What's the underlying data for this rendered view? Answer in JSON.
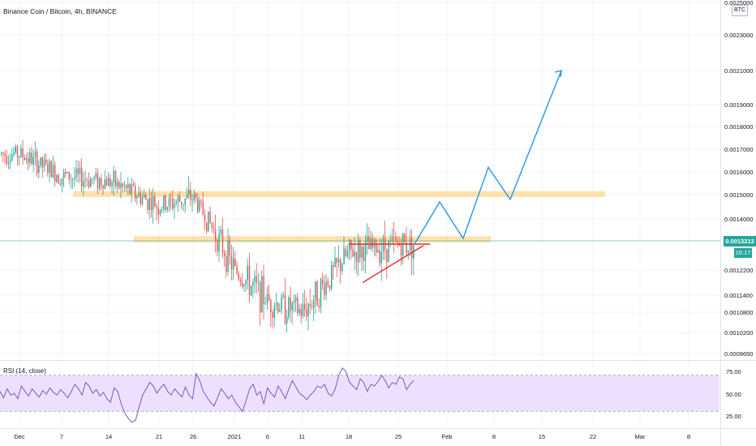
{
  "header": {
    "symbol_title": "Binance Coin / Bitcoin, 4h, BINANCE",
    "currency_badge": "BTC"
  },
  "price_tag": {
    "last_price": "0.0013213",
    "countdown": "16:17"
  },
  "rsi_label": "RSI (14, close)",
  "colors": {
    "up": "#26a69a",
    "down": "#ef5350",
    "zone": "#ffd78f",
    "projection": "#2196f3",
    "trendline": "#e53935",
    "rsi_line": "#7e57c2",
    "rsi_band": "#ede0ff"
  },
  "chart_data": [
    {
      "type": "candlestick",
      "name": "main",
      "y_axis_ticks": [
        "0.0025000",
        "0.0023000",
        "0.0021000",
        "0.0019000",
        "0.0018000",
        "0.0017000",
        "0.0016000",
        "0.0015000",
        "0.0014000",
        "0.0013213",
        "0.0012200",
        "0.0011400",
        "0.0010800",
        "0.0010200",
        "0.0009650"
      ],
      "x_axis_ticks": [
        "Dec",
        "7",
        "14",
        "21",
        "26",
        "2021",
        "6",
        "11",
        "18",
        "25",
        "Feb",
        "8",
        "15",
        "22",
        "Mar",
        "8"
      ],
      "ohlc_path": [
        [
          "Dec",
          0.00168
        ],
        [
          "7",
          0.00158
        ],
        [
          "14",
          0.00156
        ],
        [
          "21",
          0.00145
        ],
        [
          "26",
          0.00149
        ],
        [
          "2021",
          0.00122
        ],
        [
          "6",
          0.00112
        ],
        [
          "11",
          0.00108
        ],
        [
          "18",
          0.00128
        ],
        [
          "25",
          0.00131
        ]
      ],
      "horizontal_zones": [
        {
          "from": 0.001497,
          "to": 0.001508
        },
        {
          "from": 0.001322,
          "to": 0.001332
        }
      ],
      "trendlines": [
        {
          "from": [
            "18",
            0.00131
          ],
          "to": [
            "25",
            0.00131
          ]
        },
        {
          "from": [
            "18",
            0.00118
          ],
          "to": [
            "25",
            0.001305
          ]
        }
      ],
      "projection_path": [
        [
          "25",
          0.00131
        ],
        [
          "Feb",
          0.00147
        ],
        [
          "Feb",
          0.00133
        ],
        [
          "8",
          0.00162
        ],
        [
          "8",
          0.00148
        ],
        [
          "15",
          0.0021
        ]
      ],
      "last_price": 0.0013213
    },
    {
      "type": "line",
      "name": "RSI (14, close)",
      "y_axis_ticks": [
        "75.00",
        "50.00",
        "25.00"
      ],
      "ylim": [
        15,
        85
      ],
      "bands": [
        30,
        70
      ],
      "values": [
        52,
        45,
        55,
        48,
        50,
        44,
        58,
        52,
        47,
        55,
        50,
        46,
        53,
        49,
        56,
        51,
        48,
        54,
        50,
        45,
        52,
        60,
        55,
        48,
        62,
        58,
        50,
        54,
        47,
        51,
        44,
        40,
        56,
        52,
        38,
        28,
        22,
        18,
        20,
        35,
        48,
        55,
        62,
        58,
        50,
        56,
        60,
        52,
        48,
        55,
        50,
        46,
        57,
        48,
        44,
        72,
        64,
        52,
        46,
        40,
        36,
        45,
        55,
        50,
        44,
        48,
        40,
        35,
        30,
        42,
        55,
        60,
        48,
        52,
        38,
        56,
        50,
        46,
        58,
        52,
        44,
        55,
        64,
        57,
        50,
        47,
        43,
        48,
        52,
        58,
        56,
        60,
        50,
        47,
        55,
        70,
        78,
        74,
        62,
        58,
        54,
        66,
        62,
        52,
        60,
        58,
        63,
        70,
        64,
        56,
        62,
        60,
        68,
        66,
        54,
        60,
        64
      ]
    }
  ]
}
